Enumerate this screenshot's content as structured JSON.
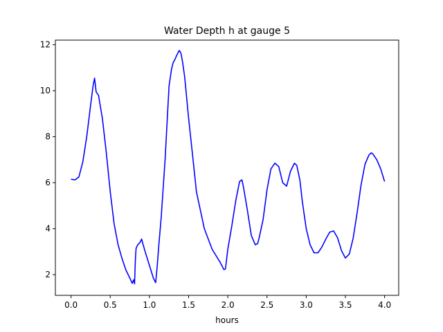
{
  "chart_data": {
    "type": "line",
    "title": "Water Depth h at gauge 5",
    "xlabel": "hours",
    "ylabel": "",
    "xlim": [
      -0.2,
      4.18
    ],
    "ylim": [
      1.1,
      12.2
    ],
    "xticks": [
      0.0,
      0.5,
      1.0,
      1.5,
      2.0,
      2.5,
      3.0,
      3.5,
      4.0
    ],
    "xtick_labels": [
      "0.0",
      "0.5",
      "1.0",
      "1.5",
      "2.0",
      "2.5",
      "3.0",
      "3.5",
      "4.0"
    ],
    "yticks": [
      2,
      4,
      6,
      8,
      10,
      12
    ],
    "ytick_labels": [
      "2",
      "4",
      "6",
      "8",
      "10",
      "12"
    ],
    "grid": false,
    "series": [
      {
        "color": "#0000ff",
        "x": [
          0.0,
          0.05,
          0.1,
          0.15,
          0.2,
          0.25,
          0.28,
          0.3,
          0.32,
          0.35,
          0.4,
          0.45,
          0.5,
          0.55,
          0.6,
          0.65,
          0.7,
          0.75,
          0.78,
          0.8,
          0.81,
          0.82,
          0.83,
          0.85,
          0.88,
          0.9,
          0.92,
          0.95,
          1.0,
          1.05,
          1.08,
          1.1,
          1.12,
          1.15,
          1.2,
          1.25,
          1.28,
          1.3,
          1.33,
          1.35,
          1.38,
          1.4,
          1.42,
          1.45,
          1.5,
          1.55,
          1.6,
          1.7,
          1.8,
          1.9,
          1.95,
          1.97,
          2.0,
          2.05,
          2.1,
          2.15,
          2.18,
          2.2,
          2.25,
          2.3,
          2.35,
          2.38,
          2.4,
          2.45,
          2.5,
          2.55,
          2.6,
          2.65,
          2.7,
          2.75,
          2.8,
          2.85,
          2.88,
          2.92,
          2.95,
          3.0,
          3.05,
          3.1,
          3.15,
          3.2,
          3.25,
          3.3,
          3.35,
          3.4,
          3.45,
          3.5,
          3.55,
          3.6,
          3.65,
          3.7,
          3.75,
          3.8,
          3.83,
          3.85,
          3.9,
          3.95,
          4.0
        ],
        "y": [
          6.15,
          6.12,
          6.25,
          6.9,
          8.0,
          9.4,
          10.2,
          10.55,
          9.95,
          9.8,
          8.8,
          7.3,
          5.6,
          4.2,
          3.3,
          2.7,
          2.2,
          1.85,
          1.62,
          1.78,
          1.6,
          2.6,
          3.15,
          3.3,
          3.4,
          3.55,
          3.3,
          2.95,
          2.4,
          1.85,
          1.65,
          2.4,
          3.3,
          4.5,
          7.0,
          10.2,
          10.9,
          11.2,
          11.4,
          11.55,
          11.75,
          11.65,
          11.3,
          10.6,
          8.8,
          7.2,
          5.6,
          4.0,
          3.1,
          2.55,
          2.22,
          2.25,
          3.1,
          4.1,
          5.2,
          6.05,
          6.12,
          5.8,
          4.8,
          3.7,
          3.3,
          3.35,
          3.6,
          4.4,
          5.7,
          6.6,
          6.85,
          6.7,
          6.0,
          5.85,
          6.5,
          6.85,
          6.75,
          6.1,
          5.2,
          4.0,
          3.3,
          2.95,
          2.95,
          3.2,
          3.55,
          3.85,
          3.9,
          3.6,
          3.05,
          2.72,
          2.9,
          3.6,
          4.7,
          5.9,
          6.8,
          7.2,
          7.3,
          7.25,
          7.0,
          6.6,
          6.05
        ]
      }
    ]
  }
}
